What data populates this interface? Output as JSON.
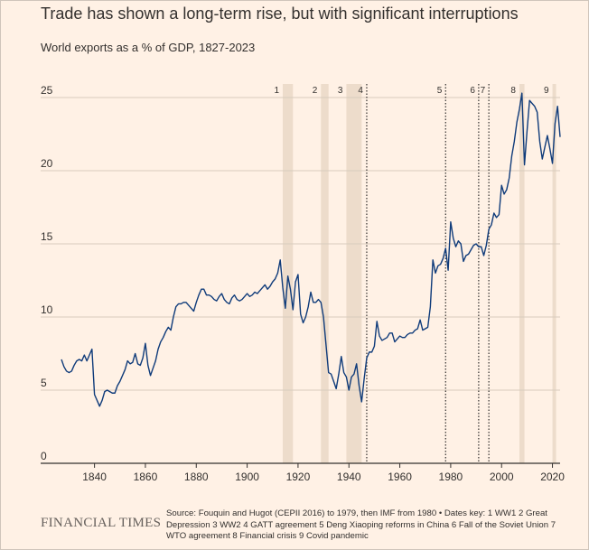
{
  "header": {
    "title": "Trade has shown a long-term rise, but with significant interruptions",
    "subtitle": "World exports as a % of GDP, 1827-2023"
  },
  "footer": {
    "logo_text": "FINANCIAL TIMES",
    "source_text": "Source: Fouquin and Hugot (CEPII 2016) to 1979, then IMF from 1980 • Dates key: 1 WW1 2 Great Depression 3 WW2 4 GATT agreement 5 Deng Xiaoping reforms in China 6 Fall of the Soviet Union 7 WTO agreement 8 Financial crisis 9 Covid pandemic"
  },
  "colors": {
    "background": "#fff1e5",
    "line": "#0f3b7a",
    "shade": "#eddccb",
    "grid": "#d8cbbd",
    "text": "#33302e"
  },
  "chart_data": {
    "type": "line",
    "title": "Trade has shown a long-term rise, but with significant interruptions",
    "subtitle": "World exports as a % of GDP, 1827-2023",
    "xlabel": "",
    "ylabel": "",
    "xlim": [
      1827,
      2023
    ],
    "ylim": [
      0,
      25
    ],
    "x_ticks": [
      1840,
      1860,
      1880,
      1900,
      1920,
      1940,
      1960,
      1980,
      2000,
      2020
    ],
    "y_ticks": [
      0,
      5,
      10,
      15,
      20,
      25
    ],
    "grid": "horizontal",
    "series": [
      {
        "color": "#0f3b7a",
        "points": [
          [
            1827,
            7.1
          ],
          [
            1828,
            6.6
          ],
          [
            1829,
            6.3
          ],
          [
            1830,
            6.2
          ],
          [
            1831,
            6.3
          ],
          [
            1832,
            6.7
          ],
          [
            1833,
            7.0
          ],
          [
            1834,
            7.1
          ],
          [
            1835,
            7.0
          ],
          [
            1836,
            7.4
          ],
          [
            1837,
            7.0
          ],
          [
            1838,
            7.4
          ],
          [
            1839,
            7.8
          ],
          [
            1840,
            4.7
          ],
          [
            1841,
            4.3
          ],
          [
            1842,
            3.9
          ],
          [
            1843,
            4.3
          ],
          [
            1844,
            4.9
          ],
          [
            1845,
            5.0
          ],
          [
            1846,
            4.9
          ],
          [
            1847,
            4.8
          ],
          [
            1848,
            4.8
          ],
          [
            1849,
            5.3
          ],
          [
            1850,
            5.6
          ],
          [
            1851,
            6.0
          ],
          [
            1852,
            6.4
          ],
          [
            1853,
            7.0
          ],
          [
            1854,
            6.8
          ],
          [
            1855,
            6.9
          ],
          [
            1856,
            7.5
          ],
          [
            1857,
            6.8
          ],
          [
            1858,
            6.7
          ],
          [
            1859,
            7.2
          ],
          [
            1860,
            8.2
          ],
          [
            1861,
            6.7
          ],
          [
            1862,
            6.0
          ],
          [
            1863,
            6.5
          ],
          [
            1864,
            7.0
          ],
          [
            1865,
            7.8
          ],
          [
            1866,
            8.3
          ],
          [
            1867,
            8.6
          ],
          [
            1868,
            9.0
          ],
          [
            1869,
            9.3
          ],
          [
            1870,
            9.1
          ],
          [
            1871,
            10.0
          ],
          [
            1872,
            10.7
          ],
          [
            1873,
            10.9
          ],
          [
            1874,
            10.9
          ],
          [
            1875,
            11.0
          ],
          [
            1876,
            11.0
          ],
          [
            1877,
            10.8
          ],
          [
            1878,
            10.6
          ],
          [
            1879,
            10.4
          ],
          [
            1880,
            11.0
          ],
          [
            1881,
            11.5
          ],
          [
            1882,
            11.9
          ],
          [
            1883,
            11.9
          ],
          [
            1884,
            11.5
          ],
          [
            1885,
            11.5
          ],
          [
            1886,
            11.4
          ],
          [
            1887,
            11.2
          ],
          [
            1888,
            11.1
          ],
          [
            1889,
            11.4
          ],
          [
            1890,
            11.6
          ],
          [
            1891,
            11.2
          ],
          [
            1892,
            11.0
          ],
          [
            1893,
            10.9
          ],
          [
            1894,
            11.3
          ],
          [
            1895,
            11.5
          ],
          [
            1896,
            11.2
          ],
          [
            1897,
            11.1
          ],
          [
            1898,
            11.2
          ],
          [
            1899,
            11.4
          ],
          [
            1900,
            11.6
          ],
          [
            1901,
            11.4
          ],
          [
            1902,
            11.5
          ],
          [
            1903,
            11.7
          ],
          [
            1904,
            11.6
          ],
          [
            1905,
            11.8
          ],
          [
            1906,
            12.0
          ],
          [
            1907,
            12.2
          ],
          [
            1908,
            11.9
          ],
          [
            1909,
            12.1
          ],
          [
            1910,
            12.4
          ],
          [
            1911,
            12.6
          ],
          [
            1912,
            13.0
          ],
          [
            1913,
            13.9
          ],
          [
            1914,
            12.0
          ],
          [
            1915,
            10.6
          ],
          [
            1916,
            12.8
          ],
          [
            1917,
            11.9
          ],
          [
            1918,
            10.5
          ],
          [
            1919,
            12.4
          ],
          [
            1920,
            12.9
          ],
          [
            1921,
            10.2
          ],
          [
            1922,
            9.6
          ],
          [
            1923,
            10.0
          ],
          [
            1924,
            10.7
          ],
          [
            1925,
            11.7
          ],
          [
            1926,
            11.0
          ],
          [
            1927,
            11.0
          ],
          [
            1928,
            11.2
          ],
          [
            1929,
            11.0
          ],
          [
            1930,
            10.0
          ],
          [
            1931,
            8.1
          ],
          [
            1932,
            6.2
          ],
          [
            1933,
            6.1
          ],
          [
            1934,
            5.6
          ],
          [
            1935,
            5.1
          ],
          [
            1936,
            6.1
          ],
          [
            1937,
            7.3
          ],
          [
            1938,
            6.2
          ],
          [
            1939,
            5.9
          ],
          [
            1940,
            5.0
          ],
          [
            1941,
            5.9
          ],
          [
            1942,
            6.1
          ],
          [
            1943,
            6.8
          ],
          [
            1944,
            5.3
          ],
          [
            1945,
            4.2
          ],
          [
            1946,
            5.8
          ],
          [
            1947,
            7.2
          ],
          [
            1948,
            7.6
          ],
          [
            1949,
            7.6
          ],
          [
            1950,
            8.0
          ],
          [
            1951,
            9.7
          ],
          [
            1952,
            8.7
          ],
          [
            1953,
            8.4
          ],
          [
            1954,
            8.5
          ],
          [
            1955,
            8.6
          ],
          [
            1956,
            8.9
          ],
          [
            1957,
            8.9
          ],
          [
            1958,
            8.3
          ],
          [
            1959,
            8.5
          ],
          [
            1960,
            8.7
          ],
          [
            1961,
            8.6
          ],
          [
            1962,
            8.6
          ],
          [
            1963,
            8.8
          ],
          [
            1964,
            8.9
          ],
          [
            1965,
            8.9
          ],
          [
            1966,
            9.1
          ],
          [
            1967,
            9.2
          ],
          [
            1968,
            9.8
          ],
          [
            1969,
            9.1
          ],
          [
            1970,
            9.2
          ],
          [
            1971,
            9.3
          ],
          [
            1972,
            10.7
          ],
          [
            1973,
            13.9
          ],
          [
            1974,
            13.0
          ],
          [
            1975,
            13.5
          ],
          [
            1976,
            13.6
          ],
          [
            1977,
            14.0
          ],
          [
            1978,
            14.7
          ],
          [
            1979,
            13.2
          ],
          [
            1980,
            16.5
          ],
          [
            1981,
            15.4
          ],
          [
            1982,
            14.8
          ],
          [
            1983,
            15.2
          ],
          [
            1984,
            15.0
          ],
          [
            1985,
            13.8
          ],
          [
            1986,
            14.2
          ],
          [
            1987,
            14.3
          ],
          [
            1988,
            14.6
          ],
          [
            1989,
            14.9
          ],
          [
            1990,
            15.0
          ],
          [
            1991,
            14.8
          ],
          [
            1992,
            14.8
          ],
          [
            1993,
            14.2
          ],
          [
            1994,
            14.9
          ],
          [
            1995,
            16.0
          ],
          [
            1996,
            16.3
          ],
          [
            1997,
            17.1
          ],
          [
            1998,
            16.8
          ],
          [
            1999,
            17.0
          ],
          [
            2000,
            19.0
          ],
          [
            2001,
            18.4
          ],
          [
            2002,
            18.7
          ],
          [
            2003,
            19.5
          ],
          [
            2004,
            21.0
          ],
          [
            2005,
            22.0
          ],
          [
            2006,
            23.3
          ],
          [
            2007,
            24.2
          ],
          [
            2008,
            25.3
          ],
          [
            2009,
            20.4
          ],
          [
            2010,
            22.7
          ],
          [
            2011,
            24.8
          ],
          [
            2012,
            24.6
          ],
          [
            2013,
            24.4
          ],
          [
            2014,
            24.0
          ],
          [
            2015,
            22.0
          ],
          [
            2016,
            20.8
          ],
          [
            2017,
            21.6
          ],
          [
            2018,
            22.4
          ],
          [
            2019,
            21.5
          ],
          [
            2020,
            20.5
          ],
          [
            2021,
            23.2
          ],
          [
            2022,
            24.4
          ],
          [
            2023,
            22.3
          ]
        ]
      }
    ],
    "shaded_periods": [
      {
        "label": "1",
        "start": 1914,
        "end": 1918
      },
      {
        "label": "2",
        "start": 1929,
        "end": 1932
      },
      {
        "label": "3",
        "start": 1939,
        "end": 1945
      },
      {
        "label": "8",
        "start": 2007,
        "end": 2009
      },
      {
        "label": "9",
        "start": 2020,
        "end": 2021
      }
    ],
    "event_lines": [
      {
        "label": "4",
        "year": 1947
      },
      {
        "label": "5",
        "year": 1978
      },
      {
        "label": "6",
        "year": 1991
      },
      {
        "label": "7",
        "year": 1995
      }
    ]
  }
}
